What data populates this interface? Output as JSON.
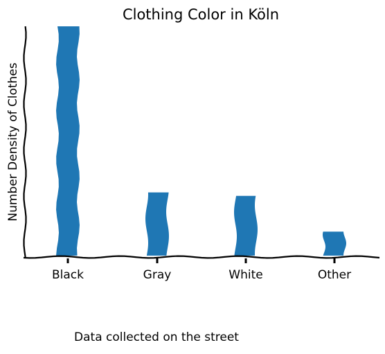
{
  "chart_data": {
    "type": "bar",
    "title": "Clothing Color in Köln",
    "xlabel": "",
    "ylabel": "Number Density of Clothes",
    "categories": [
      "Black",
      "Gray",
      "White",
      "Other"
    ],
    "values": [
      100,
      28,
      26.5,
      11
    ],
    "ylim": [
      0,
      100
    ],
    "grid": false,
    "bar_color": "#1f77b4",
    "style": "xkcd",
    "caption": "Data collected on the street"
  }
}
